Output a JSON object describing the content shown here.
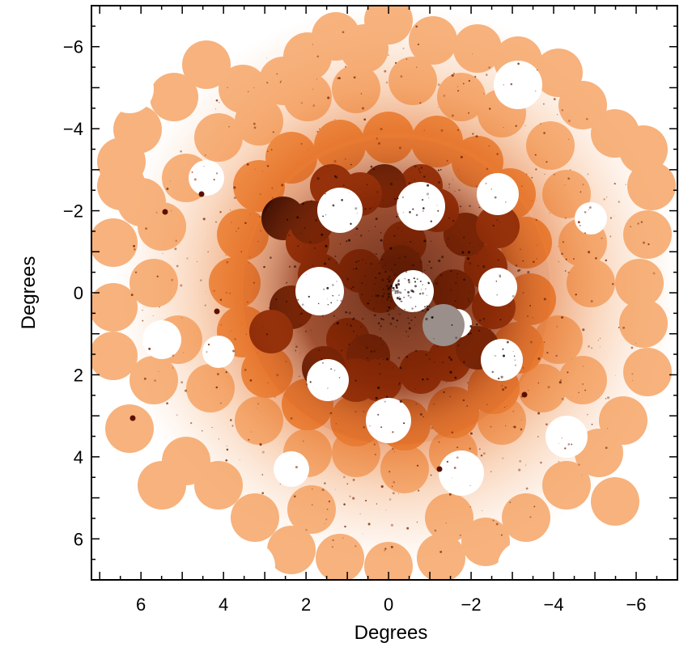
{
  "figure": {
    "xlabel": "Degrees",
    "ylabel": "Degrees",
    "x_range": [
      7.2,
      -7
    ],
    "y_range": [
      -7,
      7
    ],
    "x_ticks": [
      {
        "value": 6,
        "label": "6"
      },
      {
        "value": 4,
        "label": "4"
      },
      {
        "value": 2,
        "label": "2"
      },
      {
        "value": 0,
        "label": "0"
      },
      {
        "value": -2,
        "label": "−2"
      },
      {
        "value": -4,
        "label": "−4"
      },
      {
        "value": -6,
        "label": "−6"
      }
    ],
    "y_ticks": [
      {
        "value": -6,
        "label": "−6"
      },
      {
        "value": -4,
        "label": "−4"
      },
      {
        "value": -2,
        "label": "−2"
      },
      {
        "value": 0,
        "label": "0"
      },
      {
        "value": 2,
        "label": "2"
      },
      {
        "value": 4,
        "label": "4"
      },
      {
        "value": 6,
        "label": "6"
      }
    ],
    "colors": {
      "outer": "#f7b27d",
      "mid": "#ef8a42",
      "inner": "#8a2a07",
      "core": "#3a0d02",
      "background": "#ffffff"
    }
  }
}
